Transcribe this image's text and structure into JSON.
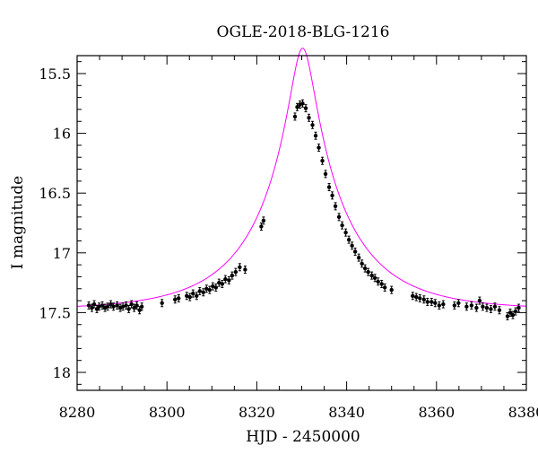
{
  "chart_data": {
    "type": "scatter",
    "title": "OGLE-2018-BLG-1216",
    "xlabel": "HJD - 2450000",
    "ylabel": "I magnitude",
    "xlim": [
      8280,
      8380
    ],
    "ylim": [
      18.15,
      15.35
    ],
    "y_inverted": true,
    "grid": false,
    "colors": {
      "points": "#000000",
      "model": "#ff00ff",
      "axes": "#000000"
    },
    "xticks": [
      {
        "value": 8280,
        "label": "8280"
      },
      {
        "value": 8300,
        "label": "8300"
      },
      {
        "value": 8320,
        "label": "8320"
      },
      {
        "value": 8340,
        "label": "8340"
      },
      {
        "value": 8360,
        "label": "8360"
      },
      {
        "value": 8380,
        "label": "8380"
      }
    ],
    "yticks": [
      {
        "value": 15.5,
        "label": "15.5"
      },
      {
        "value": 16.0,
        "label": "16"
      },
      {
        "value": 16.5,
        "label": "16.5"
      },
      {
        "value": 17.0,
        "label": "17"
      },
      {
        "value": 17.5,
        "label": "17.5"
      },
      {
        "value": 18.0,
        "label": "18"
      }
    ],
    "model": {
      "t0": 8330.2,
      "tE": 20.0,
      "u0": 0.128,
      "baseline": 17.478,
      "fs": 0.95
    },
    "series": [
      {
        "x": [
          8282.6,
          8283.3,
          8283.8,
          8284.4,
          8284.9,
          8285.6,
          8286.2,
          8286.8,
          8287.5,
          8288.1,
          8288.9,
          8289.6,
          8290.2,
          8290.9,
          8291.5,
          8292.1,
          8292.7,
          8293.3,
          8293.9,
          8294.4,
          8298.9,
          8301.8,
          8302.6,
          8304.4,
          8305.1,
          8305.8,
          8306.6,
          8307.3,
          8308.1,
          8308.8,
          8309.5,
          8310.2,
          8310.9,
          8311.6,
          8312.3,
          8313.0,
          8313.8,
          8314.5,
          8315.3,
          8316.2,
          8317.4,
          8321.0,
          8321.5,
          8328.5,
          8329.0,
          8329.6,
          8330.2,
          8330.9,
          8331.6,
          8332.4,
          8333.1,
          8333.8,
          8334.6,
          8335.3,
          8336.1,
          8336.8,
          8337.5,
          8338.3,
          8339.0,
          8339.8,
          8340.5,
          8341.2,
          8341.9,
          8342.7,
          8343.4,
          8344.1,
          8344.8,
          8345.6,
          8346.3,
          8347.0,
          8347.8,
          8348.5,
          8350.0,
          8354.7,
          8355.5,
          8356.3,
          8357.2,
          8358.0,
          8358.9,
          8359.7,
          8360.6,
          8361.5,
          8364.0,
          8364.9,
          8366.7,
          8367.8,
          8368.9,
          8369.6,
          8370.3,
          8371.2,
          8372.1,
          8373.0,
          8374.0,
          8375.8,
          8376.4,
          8377.0,
          8377.6,
          8378.3
        ],
        "y": [
          17.44,
          17.46,
          17.43,
          17.47,
          17.45,
          17.44,
          17.46,
          17.45,
          17.43,
          17.45,
          17.44,
          17.46,
          17.45,
          17.44,
          17.47,
          17.43,
          17.46,
          17.44,
          17.48,
          17.45,
          17.42,
          17.39,
          17.38,
          17.36,
          17.37,
          17.34,
          17.36,
          17.32,
          17.33,
          17.3,
          17.31,
          17.28,
          17.29,
          17.25,
          17.26,
          17.22,
          17.23,
          17.19,
          17.16,
          17.12,
          17.14,
          16.78,
          16.73,
          15.86,
          15.78,
          15.76,
          15.75,
          15.79,
          15.87,
          15.93,
          16.02,
          16.12,
          16.23,
          16.34,
          16.45,
          16.52,
          16.61,
          16.7,
          16.77,
          16.83,
          16.89,
          16.94,
          16.99,
          17.04,
          17.09,
          17.13,
          17.16,
          17.19,
          17.21,
          17.24,
          17.26,
          17.29,
          17.31,
          17.36,
          17.37,
          17.38,
          17.39,
          17.41,
          17.41,
          17.42,
          17.44,
          17.43,
          17.44,
          17.42,
          17.45,
          17.44,
          17.46,
          17.4,
          17.45,
          17.46,
          17.47,
          17.45,
          17.48,
          17.53,
          17.5,
          17.52,
          17.49,
          17.46
        ]
      }
    ]
  }
}
